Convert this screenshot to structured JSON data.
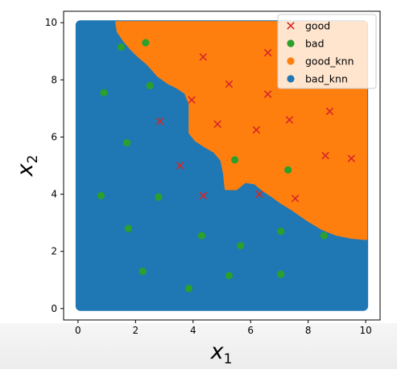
{
  "chart_data": {
    "type": "scatter",
    "title": "",
    "xlabel": "x_1",
    "ylabel": "x_2",
    "xlabel_main": "x",
    "xlabel_sub": "1",
    "ylabel_main": "x",
    "ylabel_sub": "2",
    "xlim": [
      -0.5,
      10.5
    ],
    "ylim": [
      -0.4,
      10.4
    ],
    "x_ticks": [
      "0",
      "2",
      "4",
      "6",
      "8",
      "10"
    ],
    "y_ticks": [
      "0",
      "2",
      "4",
      "6",
      "8",
      "10"
    ],
    "grid": false,
    "legend_position": "top-right",
    "legend": [
      {
        "label": "good",
        "marker": "x",
        "color": "#d62728"
      },
      {
        "label": "bad",
        "marker": "o",
        "color": "#2ca02c"
      },
      {
        "label": "good_knn",
        "marker": "o",
        "color": "#ff7f0e"
      },
      {
        "label": "bad_knn",
        "marker": "o",
        "color": "#1f77b4"
      }
    ],
    "regions": {
      "bad_knn": {
        "color": "#1f77b4",
        "extent": [
          [
            0,
            0
          ],
          [
            10,
            10
          ]
        ]
      },
      "good_knn": {
        "color": "#ff7f0e",
        "boundary": [
          [
            1.35,
            10.0
          ],
          [
            1.4,
            9.7
          ],
          [
            1.6,
            9.4
          ],
          [
            1.85,
            9.1
          ],
          [
            2.1,
            8.85
          ],
          [
            2.45,
            8.55
          ],
          [
            2.8,
            8.15
          ],
          [
            3.15,
            7.9
          ],
          [
            3.45,
            7.75
          ],
          [
            3.75,
            7.55
          ],
          [
            3.9,
            7.15
          ],
          [
            3.9,
            6.55
          ],
          [
            3.9,
            6.15
          ],
          [
            4.1,
            5.9
          ],
          [
            4.4,
            5.7
          ],
          [
            4.75,
            5.5
          ],
          [
            5.0,
            5.2
          ],
          [
            5.1,
            4.7
          ],
          [
            5.15,
            4.2
          ],
          [
            5.5,
            4.2
          ],
          [
            5.8,
            4.45
          ],
          [
            6.15,
            4.4
          ],
          [
            6.45,
            4.15
          ],
          [
            6.75,
            3.95
          ],
          [
            7.1,
            3.7
          ],
          [
            7.5,
            3.45
          ],
          [
            8.0,
            3.1
          ],
          [
            8.5,
            2.8
          ],
          [
            9.0,
            2.6
          ],
          [
            9.5,
            2.5
          ],
          [
            10.0,
            2.45
          ],
          [
            10.0,
            10.0
          ]
        ]
      }
    },
    "series": [
      {
        "name": "good",
        "marker": "x",
        "color": "#d62728",
        "points": [
          [
            4.35,
            8.8
          ],
          [
            6.6,
            8.95
          ],
          [
            3.95,
            7.3
          ],
          [
            5.25,
            7.85
          ],
          [
            6.6,
            7.5
          ],
          [
            2.85,
            6.55
          ],
          [
            4.85,
            6.45
          ],
          [
            6.2,
            6.25
          ],
          [
            7.35,
            6.6
          ],
          [
            8.75,
            6.9
          ],
          [
            3.55,
            5.0
          ],
          [
            4.35,
            3.95
          ],
          [
            6.3,
            4.0
          ],
          [
            7.55,
            3.85
          ],
          [
            8.6,
            5.35
          ],
          [
            9.5,
            5.25
          ]
        ]
      },
      {
        "name": "bad",
        "marker": "o",
        "color": "#2ca02c",
        "points": [
          [
            1.5,
            9.15
          ],
          [
            2.35,
            9.3
          ],
          [
            0.9,
            7.55
          ],
          [
            2.5,
            7.8
          ],
          [
            1.7,
            5.8
          ],
          [
            0.8,
            3.95
          ],
          [
            2.8,
            3.9
          ],
          [
            5.45,
            5.2
          ],
          [
            7.3,
            4.85
          ],
          [
            1.75,
            2.8
          ],
          [
            4.3,
            2.55
          ],
          [
            5.65,
            2.2
          ],
          [
            7.05,
            2.7
          ],
          [
            8.55,
            2.55
          ],
          [
            2.25,
            1.3
          ],
          [
            3.85,
            0.7
          ],
          [
            5.25,
            1.15
          ],
          [
            7.05,
            1.2
          ]
        ]
      }
    ]
  }
}
